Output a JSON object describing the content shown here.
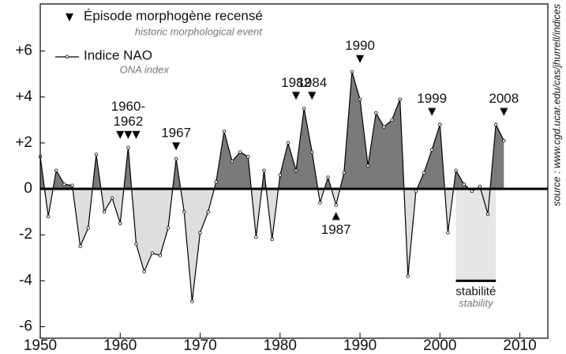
{
  "chart_data": {
    "type": "area",
    "series": [
      {
        "name": "Indice NAO",
        "subname": "ONA index",
        "color": "#000000",
        "pos_color": "#7a7a7a",
        "neg_color": "#dedede",
        "x": [
          1950,
          1951,
          1952,
          1953,
          1954,
          1955,
          1956,
          1957,
          1958,
          1959,
          1960,
          1961,
          1962,
          1963,
          1964,
          1965,
          1966,
          1967,
          1968,
          1969,
          1970,
          1971,
          1972,
          1973,
          1974,
          1975,
          1976,
          1977,
          1978,
          1979,
          1980,
          1981,
          1982,
          1983,
          1984,
          1985,
          1986,
          1987,
          1988,
          1989,
          1990,
          1991,
          1992,
          1993,
          1994,
          1995,
          1996,
          1997,
          1998,
          1999,
          2000,
          2001,
          2002,
          2003,
          2004,
          2005,
          2006,
          2007,
          2008
        ],
        "values": [
          1.4,
          -1.2,
          0.8,
          0.2,
          0.15,
          -2.5,
          -1.7,
          1.5,
          -1.0,
          -0.4,
          -1.5,
          1.8,
          -2.4,
          -3.6,
          -2.8,
          -2.9,
          -1.7,
          1.3,
          -1.0,
          -4.9,
          -1.9,
          -1.0,
          0.3,
          2.5,
          1.2,
          1.6,
          1.4,
          -2.1,
          0.8,
          -2.2,
          0.6,
          2.0,
          0.8,
          3.5,
          1.6,
          -0.6,
          0.5,
          -0.7,
          0.7,
          5.1,
          3.9,
          1.0,
          3.3,
          2.7,
          3.0,
          3.9,
          -3.8,
          -0.1,
          0.7,
          1.7,
          2.8,
          -1.9,
          0.8,
          0.2,
          -0.1,
          0.1,
          -1.1,
          2.8,
          2.1
        ]
      }
    ],
    "events_legend": {
      "label": "Épisode morphogène recensé",
      "sublabel": "historic morphological event"
    },
    "events": [
      {
        "years": [
          1960,
          1961,
          1962
        ],
        "label": [
          "1960-",
          "1962"
        ]
      },
      {
        "years": [
          1967
        ],
        "label": [
          "1967"
        ]
      },
      {
        "years": [
          1982
        ],
        "label": [
          "1982"
        ]
      },
      {
        "years": [
          1984
        ],
        "label": [
          "1984"
        ]
      },
      {
        "years": [
          1987
        ],
        "label": [
          "1987"
        ],
        "below": true
      },
      {
        "years": [
          1990
        ],
        "label": [
          "1990"
        ]
      },
      {
        "years": [
          1999
        ],
        "label": [
          "1999"
        ]
      },
      {
        "years": [
          2008
        ],
        "label": [
          "2008"
        ]
      }
    ],
    "stability": {
      "start": 2002,
      "end": 2007,
      "level": -4,
      "label": "stabilité",
      "sublabel": "stability"
    },
    "source": "source : www.cgd.ucar.edu/cas/jhurrell/indices",
    "xlim": [
      1950,
      2013.5
    ],
    "xticks": [
      1950,
      1960,
      1970,
      1980,
      1990,
      2000,
      2010
    ],
    "ylim": [
      -6.5,
      8.05
    ],
    "yticks": [
      {
        "value": 6,
        "label": "+6"
      },
      {
        "value": 4,
        "label": "+4"
      },
      {
        "value": 2,
        "label": "+2"
      },
      0,
      -2,
      -4,
      -6
    ]
  }
}
